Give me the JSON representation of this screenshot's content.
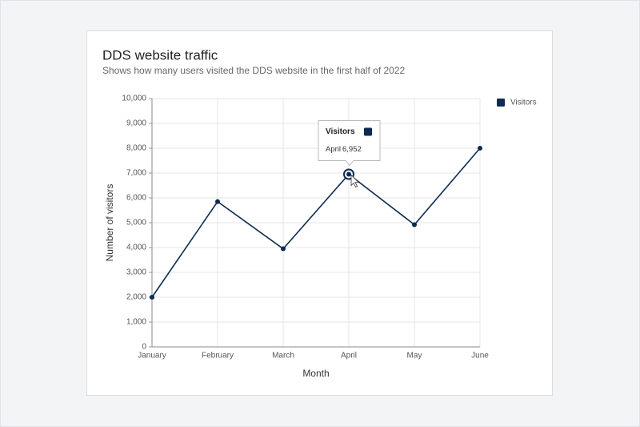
{
  "chart_data": {
    "type": "line",
    "title": "DDS website traffic",
    "subtitle": "Shows how many users visited the DDS website in the first half of 2022",
    "x_label": "Month",
    "y_label": "Number of visitors",
    "categories": [
      "January",
      "February",
      "March",
      "April",
      "May",
      "June"
    ],
    "series": [
      {
        "name": "Visitors",
        "color": "#0d2b52",
        "values": [
          2000,
          5850,
          3950,
          6952,
          4920,
          8000
        ],
        "value_labels": [
          null,
          null,
          null,
          "6,952",
          null,
          null
        ]
      }
    ],
    "ylim": [
      0,
      10000
    ],
    "yticks": [
      0,
      {
        "value": 1000,
        "label": "1,000"
      },
      {
        "value": 2000,
        "label": "2,000"
      },
      {
        "value": 3000,
        "label": "3,000"
      },
      {
        "value": 4000,
        "label": "4,000"
      },
      {
        "value": 5000,
        "label": "5,000"
      },
      {
        "value": 6000,
        "label": "6,000"
      },
      {
        "value": 7000,
        "label": "7,000"
      },
      {
        "value": 8000,
        "label": "8,000"
      },
      {
        "value": 9000,
        "label": "9,000"
      },
      {
        "value": 10000,
        "label": "10,000"
      }
    ],
    "grid": true,
    "legend": "right"
  }
}
